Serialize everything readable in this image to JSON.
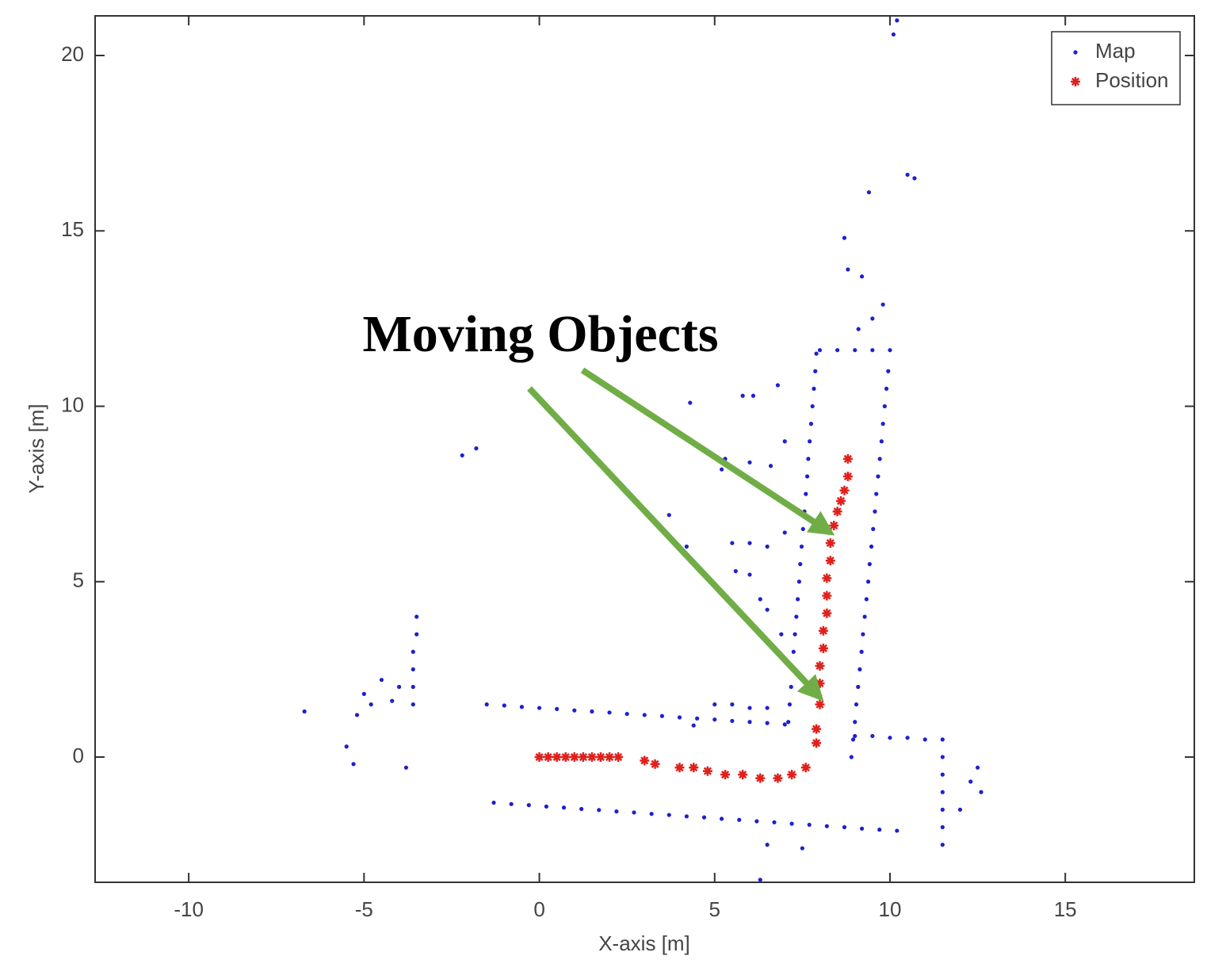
{
  "chart_data": {
    "type": "scatter",
    "xlabel": "X-axis [m]",
    "ylabel": "Y-axis [m]",
    "annotation": "Moving Objects",
    "xlim": [
      -12.67,
      18.68
    ],
    "ylim": [
      -3.57,
      21.13
    ],
    "xticks": [
      -10,
      -5,
      0,
      5,
      10,
      15
    ],
    "yticks": [
      0,
      5,
      10,
      15,
      20
    ],
    "legend": "northeast",
    "series": [
      {
        "name": "Map",
        "color": "#1f1fd0",
        "marker": "dot",
        "x": [
          -1.5,
          -1,
          -0.5,
          0,
          0.5,
          1,
          1.5,
          2,
          2.5,
          3,
          3.5,
          4,
          4.5,
          5,
          5.5,
          6,
          6.5,
          7,
          5,
          5.5,
          6,
          6.5,
          -1.3,
          -0.8,
          -0.3,
          0.2,
          0.7,
          1.2,
          1.7,
          2.2,
          2.7,
          3.2,
          3.7,
          4.2,
          4.7,
          5.2,
          5.7,
          6.2,
          6.7,
          7.2,
          7.7,
          8.2,
          8.7,
          9.2,
          9.7,
          10.2,
          7.1,
          7.14,
          7.18,
          7.21,
          7.25,
          7.29,
          7.33,
          7.37,
          7.41,
          7.44,
          7.48,
          7.52,
          7.56,
          7.6,
          7.64,
          7.67,
          7.71,
          7.75,
          7.79,
          7.83,
          7.87,
          7.9,
          8.9,
          8.95,
          9,
          9.04,
          9.09,
          9.14,
          9.19,
          9.23,
          9.28,
          9.33,
          9.38,
          9.42,
          9.47,
          9.52,
          9.57,
          9.61,
          9.66,
          9.71,
          9.76,
          9.8,
          9.85,
          9.9,
          9.95,
          8,
          8.5,
          9,
          9.5,
          10,
          9,
          9.5,
          10,
          10.5,
          11,
          11.5,
          11.5,
          11.5,
          11.5,
          11.5,
          11.5,
          11.5,
          -3.6,
          -3.6,
          -3.6,
          -3.6,
          -3.5,
          -3.5,
          -4,
          -4.5,
          -5,
          -5.2,
          -5.5,
          -5.3,
          -3.8,
          -6.7,
          -4.2,
          -4.8,
          -2.2,
          -1.8,
          10.1,
          10.2,
          10.5,
          10.7,
          9.4,
          8.7,
          8.8,
          9.2,
          9.5,
          9.8,
          9.1,
          4.3,
          5.8,
          6.1,
          6.8,
          5.3,
          6,
          6.6,
          7,
          5.2,
          3.7,
          4.2,
          5.5,
          6,
          6.5,
          7,
          5.6,
          6,
          6.3,
          6.5,
          6.9,
          4.4,
          6.5,
          7.5,
          6.3,
          12.5,
          12.6,
          12,
          12.3
        ],
        "y": [
          1.5,
          1.47,
          1.43,
          1.4,
          1.37,
          1.33,
          1.3,
          1.27,
          1.23,
          1.2,
          1.17,
          1.13,
          1.1,
          1.07,
          1.03,
          1,
          0.97,
          0.93,
          1.5,
          1.5,
          1.4,
          1.4,
          -1.3,
          -1.34,
          -1.37,
          -1.41,
          -1.44,
          -1.48,
          -1.51,
          -1.55,
          -1.58,
          -1.62,
          -1.65,
          -1.69,
          -1.72,
          -1.76,
          -1.79,
          -1.83,
          -1.86,
          -1.9,
          -1.93,
          -1.97,
          -2,
          -2.04,
          -2.07,
          -2.1,
          1,
          1.5,
          2,
          2.5,
          3,
          3.5,
          4,
          4.5,
          5,
          5.5,
          6,
          6.5,
          7,
          7.5,
          8,
          8.5,
          9,
          9.5,
          10,
          10.5,
          11,
          11.5,
          0,
          0.5,
          1,
          1.5,
          2,
          2.5,
          3,
          3.5,
          4,
          4.5,
          5,
          5.5,
          6,
          6.5,
          7,
          7.5,
          8,
          8.5,
          9,
          9.5,
          10,
          10.5,
          11,
          11.6,
          11.6,
          11.6,
          11.6,
          11.6,
          0.6,
          0.6,
          0.55,
          0.55,
          0.5,
          0.5,
          0,
          -0.5,
          -1,
          -1.5,
          -2,
          -2.5,
          1.5,
          2,
          2.5,
          3,
          3.5,
          4,
          2,
          2.2,
          1.8,
          1.2,
          0.3,
          -0.2,
          -0.3,
          1.3,
          1.6,
          1.5,
          8.6,
          8.8,
          20.6,
          21,
          16.6,
          16.5,
          16.1,
          14.8,
          13.9,
          13.7,
          12.5,
          12.9,
          12.2,
          10.1,
          10.3,
          10.3,
          10.6,
          8.5,
          8.4,
          8.3,
          9,
          8.2,
          6.9,
          6,
          6.1,
          6.1,
          6,
          6.4,
          5.3,
          5.2,
          4.5,
          4.2,
          3.5,
          0.9,
          -2.5,
          -2.6,
          -3.5,
          -0.3,
          -1,
          -1.5,
          -0.7
        ]
      },
      {
        "name": "Position",
        "color": "#e0201c",
        "marker": "star",
        "x": [
          0,
          0.25,
          0.5,
          0.75,
          1,
          1.25,
          1.5,
          1.75,
          2,
          2.25,
          3,
          3.3,
          4,
          4.4,
          4.8,
          5.3,
          5.8,
          6.3,
          6.8,
          7.2,
          7.6,
          7.9,
          7.9,
          8,
          8,
          8,
          8.1,
          8.1,
          8.2,
          8.2,
          8.2,
          8.3,
          8.3,
          8.4,
          8.5,
          8.6,
          8.7,
          8.8,
          8.8
        ],
        "y": [
          0,
          0,
          0,
          0,
          0,
          0,
          0,
          0,
          0,
          0,
          -0.1,
          -0.2,
          -0.3,
          -0.3,
          -0.4,
          -0.5,
          -0.5,
          -0.6,
          -0.6,
          -0.5,
          -0.3,
          0.4,
          0.8,
          1.5,
          2.1,
          2.6,
          3.1,
          3.6,
          4.1,
          4.6,
          5.1,
          5.6,
          6.1,
          6.6,
          7,
          7.3,
          7.6,
          8,
          8.5
        ]
      }
    ]
  }
}
